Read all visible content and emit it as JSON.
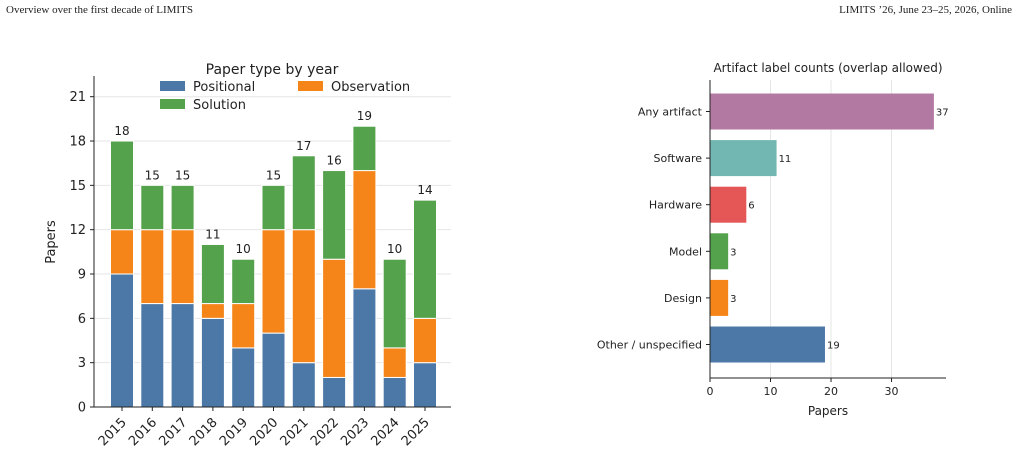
{
  "header": {
    "left": "Overview over the first decade of LIMITS",
    "right": "LIMITS ’26, June 23–25, 2026, Online"
  },
  "chart_data": [
    {
      "type": "bar",
      "stacked": true,
      "title": "Paper type by year",
      "xlabel": "",
      "ylabel": "Papers",
      "ylim": [
        0,
        22.4
      ],
      "yticks": [
        0,
        3,
        6,
        9,
        12,
        15,
        18,
        21
      ],
      "grid": "horizontal",
      "legend_position": "top",
      "categories": [
        "2015",
        "2016",
        "2017",
        "2018",
        "2019",
        "2020",
        "2021",
        "2022",
        "2023",
        "2024",
        "2025"
      ],
      "series": [
        {
          "name": "Positional",
          "color": "#4c78a8",
          "values": [
            9,
            7,
            7,
            6,
            4,
            5,
            3,
            2,
            8,
            2,
            3
          ]
        },
        {
          "name": "Observation",
          "color": "#f58518",
          "values": [
            3,
            5,
            5,
            1,
            3,
            7,
            9,
            8,
            8,
            2,
            3
          ]
        },
        {
          "name": "Solution",
          "color": "#54a24b",
          "values": [
            6,
            3,
            3,
            4,
            3,
            3,
            5,
            6,
            3,
            6,
            8
          ]
        }
      ],
      "totals": [
        18,
        15,
        15,
        11,
        10,
        15,
        17,
        16,
        19,
        10,
        14
      ]
    },
    {
      "type": "bar",
      "orientation": "horizontal",
      "title": "Artifact label counts (overlap allowed)",
      "xlabel": "Papers",
      "ylabel": "",
      "xlim": [
        0,
        39
      ],
      "xticks": [
        0,
        10,
        20,
        30
      ],
      "grid": "vertical",
      "categories": [
        "Any artifact",
        "Software",
        "Hardware",
        "Model",
        "Design",
        "Other / unspecified"
      ],
      "values": [
        37,
        11,
        6,
        3,
        3,
        19
      ],
      "colors": [
        "#b279a2",
        "#72b7b2",
        "#e45756",
        "#54a24b",
        "#f58518",
        "#4c78a8"
      ]
    }
  ]
}
